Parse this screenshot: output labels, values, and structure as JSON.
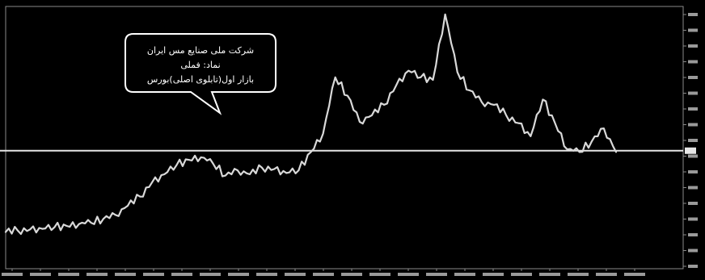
{
  "chart_data": {
    "type": "line",
    "title": "",
    "xlabel": "",
    "ylabel": "",
    "colors": {
      "background": "#000000",
      "line": "#d9d9d9",
      "reference_line": "#e6e6e6",
      "frame": "#8a8a8a",
      "text": "#ffffff"
    },
    "x_axis": {
      "tick_labels": [
        "",
        "",
        "",
        "",
        "",
        "",
        "",
        "",
        "",
        "",
        "",
        "",
        "",
        "",
        "",
        "",
        "",
        "",
        "",
        "",
        "",
        "",
        ""
      ]
    },
    "y_axis": {
      "position": "right",
      "ylim": [
        0,
        100
      ],
      "tick_labels": [
        "",
        "",
        "",
        "",
        "",
        "",
        "",
        "",
        "",
        "",
        "",
        "",
        "",
        "",
        "",
        "",
        ""
      ]
    },
    "reference_line": {
      "value": 45
    },
    "series": [
      {
        "name": "",
        "x": [
          0,
          2,
          4,
          6,
          8,
          10,
          12,
          14,
          16,
          18,
          20,
          22,
          24,
          26,
          28,
          30,
          32,
          34,
          36,
          38,
          40,
          42,
          44,
          46,
          48,
          50,
          52,
          54,
          56,
          58,
          60,
          62,
          64,
          66,
          68,
          70,
          72,
          74,
          76,
          78,
          80,
          82,
          84,
          86,
          88,
          90,
          92,
          94,
          96,
          98,
          100
        ],
        "values": [
          14,
          14.5,
          15,
          15.2,
          15.8,
          16.3,
          17.0,
          17.5,
          19.0,
          20.5,
          24.0,
          27.5,
          33.0,
          36.0,
          39.5,
          41.5,
          42.5,
          40.0,
          35.5,
          37.5,
          36.0,
          38.5,
          38.0,
          36.5,
          37.5,
          44.5,
          51.5,
          73.0,
          66.0,
          56.0,
          58.5,
          62.5,
          70.0,
          75.5,
          73.0,
          72.0,
          97.0,
          75.0,
          68.0,
          63.5,
          62.5,
          58.5,
          55.5,
          50.5,
          64.5,
          55.5,
          45.5,
          44.5,
          48.5,
          53.5,
          44.5
        ]
      }
    ],
    "annotation": {
      "lines": [
        "شرکت ملی صنایع مس ایران",
        "نماد: فملی",
        "بازار اول(تابلوی اصلی)بورس"
      ]
    },
    "grid": false,
    "legend": "none"
  }
}
